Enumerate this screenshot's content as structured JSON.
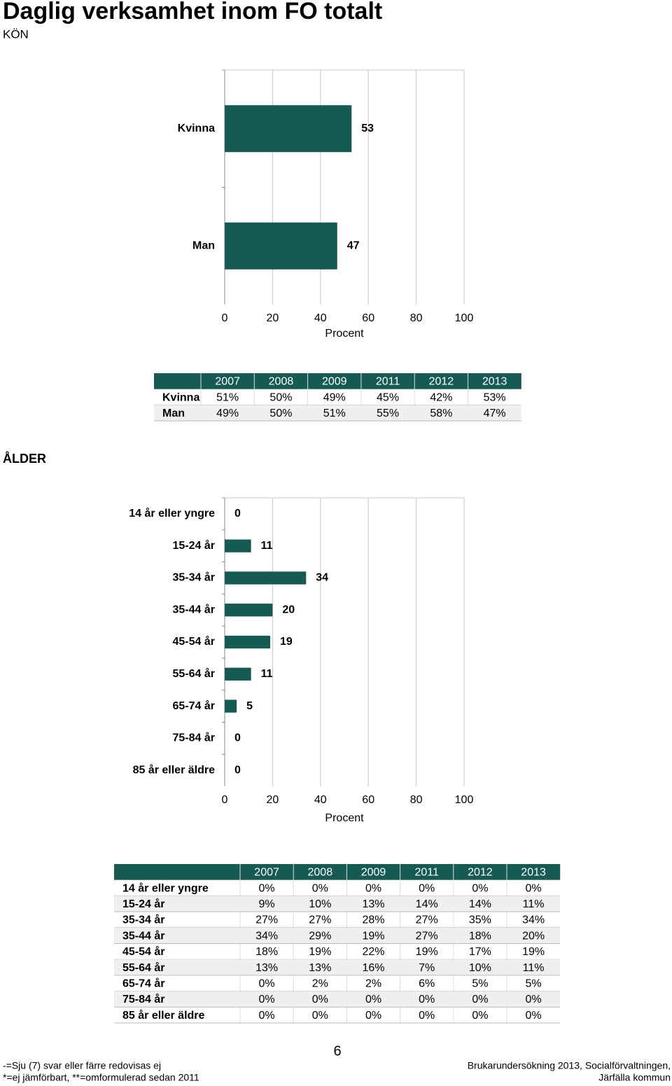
{
  "header": {
    "title": "Daglig verksamhet inom FO totalt"
  },
  "section_labels": [
    "KÖN",
    "ÅLDER"
  ],
  "chart_data": [
    {
      "type": "hbar",
      "categories": [
        "Kvinna",
        "Man"
      ],
      "values": [
        53,
        47
      ],
      "color": "#165a54",
      "xlim": [
        0,
        100
      ],
      "xticks": [
        0,
        20,
        40,
        60,
        80,
        100
      ],
      "x_label": "Procent",
      "grid": true
    },
    {
      "type": "hbar",
      "categories": [
        "14 år eller yngre",
        "15-24 år",
        "35-34 år",
        "35-44 år",
        "45-54 år",
        "55-64 år",
        "65-74 år",
        "75-84 år",
        "85 år eller äldre"
      ],
      "values": [
        0,
        11,
        34,
        20,
        19,
        11,
        5,
        0,
        0
      ],
      "color": "#165a54",
      "xlim": [
        0,
        100
      ],
      "xticks": [
        0,
        20,
        40,
        60,
        80,
        100
      ],
      "x_label": "Procent",
      "grid": true
    }
  ],
  "tables": [
    {
      "columns": [
        "2007",
        "2008",
        "2009",
        "2011",
        "2012",
        "2013"
      ],
      "rows": [
        {
          "label": "Kvinna",
          "cells": [
            "51%",
            "50%",
            "49%",
            "45%",
            "42%",
            "53%"
          ]
        },
        {
          "label": "Man",
          "cells": [
            "49%",
            "50%",
            "51%",
            "55%",
            "58%",
            "47%"
          ]
        }
      ]
    },
    {
      "columns": [
        "2007",
        "2008",
        "2009",
        "2011",
        "2012",
        "2013"
      ],
      "rows": [
        {
          "label": "14 år eller yngre",
          "cells": [
            "0%",
            "0%",
            "0%",
            "0%",
            "0%",
            "0%"
          ]
        },
        {
          "label": "15-24 år",
          "cells": [
            "9%",
            "10%",
            "13%",
            "14%",
            "14%",
            "11%"
          ]
        },
        {
          "label": "35-34 år",
          "cells": [
            "27%",
            "27%",
            "28%",
            "27%",
            "35%",
            "34%"
          ]
        },
        {
          "label": "35-44 år",
          "cells": [
            "34%",
            "29%",
            "19%",
            "27%",
            "18%",
            "20%"
          ]
        },
        {
          "label": "45-54 år",
          "cells": [
            "18%",
            "19%",
            "22%",
            "19%",
            "17%",
            "19%"
          ]
        },
        {
          "label": "55-64 år",
          "cells": [
            "13%",
            "13%",
            "16%",
            "7%",
            "10%",
            "11%"
          ]
        },
        {
          "label": "65-74 år",
          "cells": [
            "0%",
            "2%",
            "2%",
            "6%",
            "5%",
            "5%"
          ]
        },
        {
          "label": "75-84 år",
          "cells": [
            "0%",
            "0%",
            "0%",
            "0%",
            "0%",
            "0%"
          ]
        },
        {
          "label": "85 år eller äldre",
          "cells": [
            "0%",
            "0%",
            "0%",
            "0%",
            "0%",
            "0%"
          ]
        }
      ]
    }
  ],
  "footer": {
    "notes": [
      "-=Sju (7) svar eller färre redovisas ej",
      "*=ej jämförbart, **=omformulerad sedan 2011"
    ],
    "page_number": "6",
    "source": [
      "Brukarundersökning 2013, Socialförvaltningen,",
      "Järfälla kommun"
    ]
  }
}
